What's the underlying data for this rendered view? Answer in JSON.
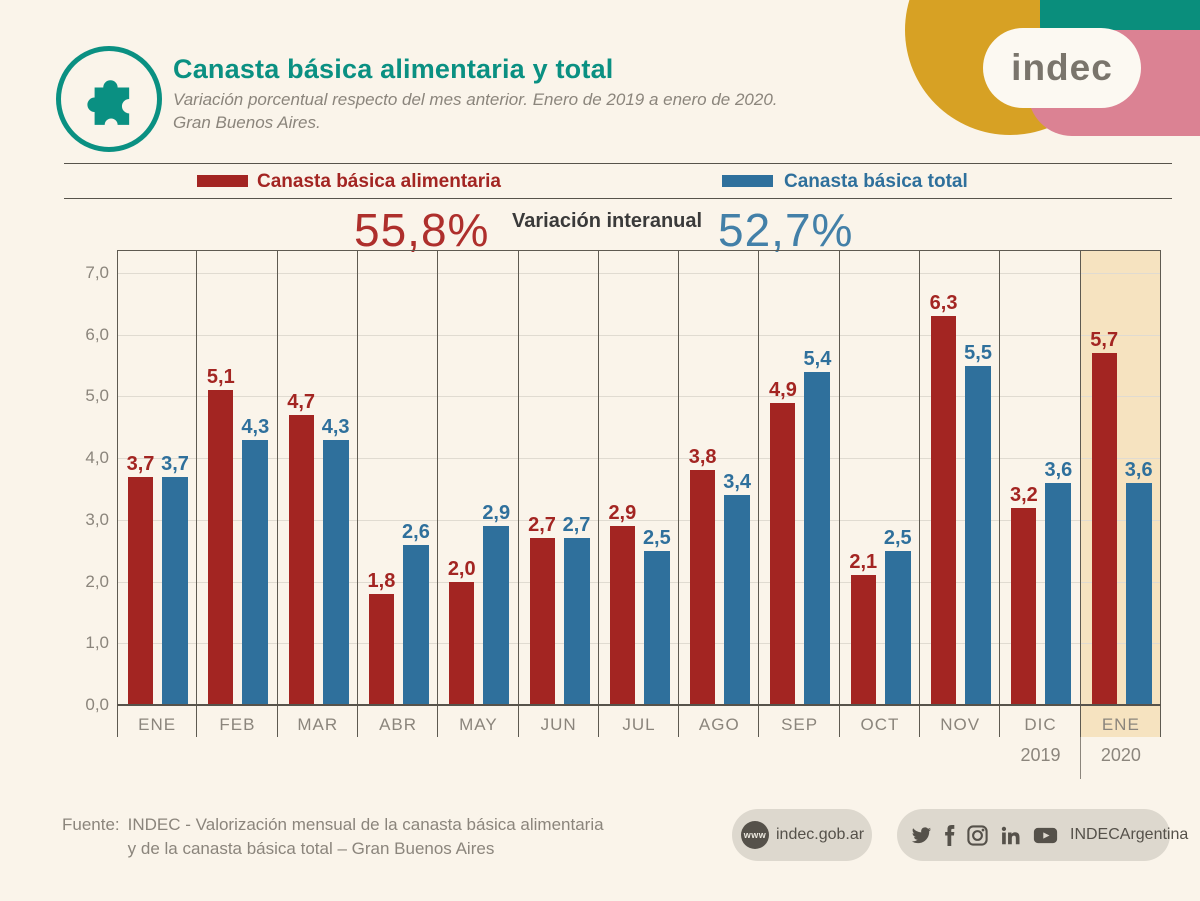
{
  "header": {
    "title": "Canasta básica alimentaria y total",
    "subtitle_line1": "Variación porcentual respecto del mes anterior. Enero de 2019 a enero de 2020.",
    "subtitle_line2": "Gran Buenos Aires.",
    "logo_text": "indec"
  },
  "legend": {
    "series1_label": "Canasta básica alimentaria",
    "series2_label": "Canasta básica total"
  },
  "interannual": {
    "label": "Variación interanual",
    "cba_value": "55,8%",
    "cbt_value": "52,7%"
  },
  "chart_data": {
    "type": "bar",
    "title": "Canasta básica alimentaria y total",
    "subtitle": "Variación porcentual respecto del mes anterior. Enero de 2019 a enero de 2020. Gran Buenos Aires.",
    "categories": [
      "ENE",
      "FEB",
      "MAR",
      "ABR",
      "MAY",
      "JUN",
      "JUL",
      "AGO",
      "SEP",
      "OCT",
      "NOV",
      "DIC",
      "ENE"
    ],
    "series": [
      {
        "name": "Canasta básica alimentaria",
        "color": "#A32522",
        "values": [
          3.7,
          5.1,
          4.7,
          1.8,
          2.0,
          2.7,
          2.9,
          3.8,
          4.9,
          2.1,
          6.3,
          3.2,
          5.7
        ],
        "labels": [
          "3,7",
          "5,1",
          "4,7",
          "1,8",
          "2,0",
          "2,7",
          "2,9",
          "3,8",
          "4,9",
          "2,1",
          "6,3",
          "3,2",
          "5,7"
        ]
      },
      {
        "name": "Canasta básica total",
        "color": "#2F709C",
        "values": [
          3.7,
          4.3,
          4.3,
          2.6,
          2.9,
          2.7,
          2.5,
          3.4,
          5.4,
          2.5,
          5.5,
          3.6,
          3.6
        ],
        "labels": [
          "3,7",
          "4,3",
          "4,3",
          "2,6",
          "2,9",
          "2,7",
          "2,5",
          "3,4",
          "5,4",
          "2,5",
          "5,5",
          "3,6",
          "3,6"
        ]
      }
    ],
    "ylim": [
      0,
      7
    ],
    "yticks": [
      "0,0",
      "1,0",
      "2,0",
      "3,0",
      "4,0",
      "5,0",
      "6,0",
      "7,0"
    ],
    "grid": true,
    "legend_position": "top",
    "highlight_index": 12,
    "highlight_color": "#F6E3C0",
    "years": [
      {
        "label": "2019",
        "column_center": 11.5
      },
      {
        "label": "2020",
        "column_center": 12.5
      }
    ]
  },
  "footer": {
    "source_label": "Fuente:",
    "source_line1": "INDEC - Valorización mensual de la canasta básica alimentaria",
    "source_line2": "y de la canasta básica total – Gran Buenos Aires",
    "website_icon_text": "www",
    "website": "indec.gob.ar",
    "social_handle": "INDECArgentina",
    "social_icons": [
      "twitter-icon",
      "facebook-icon",
      "instagram-icon",
      "linkedin-icon",
      "youtube-icon"
    ]
  },
  "colors": {
    "background": "#FAF4EA",
    "cba_red": "#A32522",
    "cbt_blue": "#2F709C",
    "title_teal": "#0A9082",
    "highlight_beige": "#F6E3C0",
    "logo_gold": "#D7A124",
    "logo_teal": "#0A8E7C",
    "logo_pink": "#DB8293",
    "axis_dark": "#57534B",
    "grid_light": "#E0DBD1",
    "text_gray": "#8B857C"
  }
}
